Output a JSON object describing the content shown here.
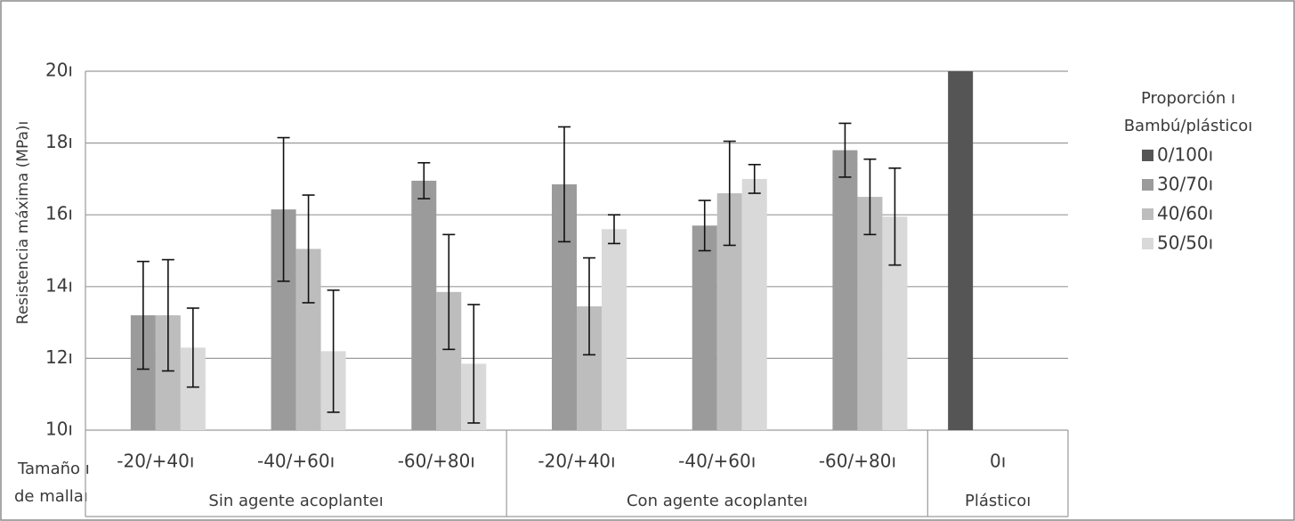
{
  "chart_data": {
    "type": "bar",
    "ylabel": "Resistencia máxima (MPa)ı",
    "xlabel": [
      "Tamaño ı",
      "de mallaı"
    ],
    "legend_title": [
      "Proporción ı",
      "Bambú/plásticoı"
    ],
    "legend": "right",
    "grid": true,
    "groups": [
      {
        "label": "Sin agente acoplanteı",
        "categories": [
          "-20/+40ı",
          "-40/+60ı",
          "-60/+80ı"
        ]
      },
      {
        "label": "Con agente acoplanteı",
        "categories": [
          "-20/+40ı",
          "-40/+60ı",
          "-60/+80ı"
        ]
      },
      {
        "label": "Plásticoı",
        "categories": [
          "0ı"
        ]
      }
    ],
    "ylim": [
      10,
      20
    ],
    "yticks": [
      {
        "value": 10,
        "label": "10ı"
      },
      {
        "value": 12,
        "label": "12ı"
      },
      {
        "value": 14,
        "label": "14ı"
      },
      {
        "value": 16,
        "label": "16ı"
      },
      {
        "value": 18,
        "label": "18ı"
      },
      {
        "value": 20,
        "label": "20ı"
      }
    ],
    "series": [
      {
        "name": "0/100ı",
        "color": "#555555",
        "values": [
          null,
          null,
          null,
          null,
          null,
          null,
          20
        ],
        "errors": [
          null,
          null,
          null,
          null,
          null,
          null,
          null
        ]
      },
      {
        "name": "30/70ı",
        "color": "#9b9b9b",
        "values": [
          13.2,
          16.15,
          16.95,
          16.85,
          15.7,
          17.8,
          null
        ],
        "errors": [
          1.5,
          2.0,
          0.5,
          1.6,
          0.7,
          0.75,
          null
        ]
      },
      {
        "name": "40/60ı",
        "color": "#bdbdbd",
        "values": [
          13.2,
          15.05,
          13.85,
          13.45,
          16.6,
          16.5,
          null
        ],
        "errors": [
          1.55,
          1.5,
          1.6,
          1.35,
          1.45,
          1.05,
          null
        ]
      },
      {
        "name": "50/50ı",
        "color": "#d9d9d9",
        "values": [
          12.3,
          12.2,
          11.85,
          15.6,
          17.0,
          15.95,
          null
        ],
        "errors": [
          1.1,
          1.7,
          1.65,
          0.4,
          0.4,
          1.35,
          null
        ]
      }
    ]
  }
}
